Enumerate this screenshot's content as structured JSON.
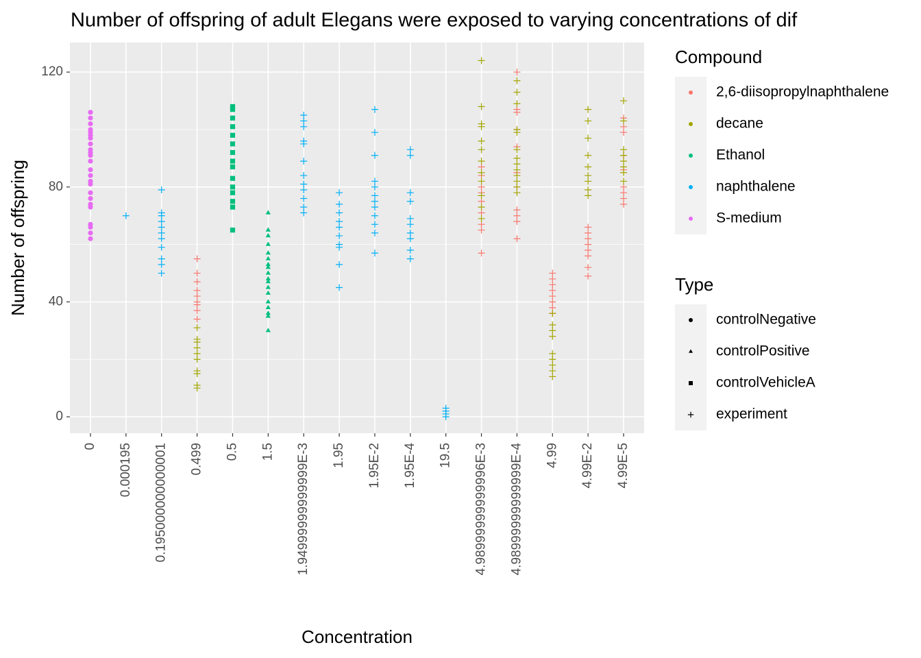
{
  "chart_data": {
    "type": "scatter",
    "title": "Number of offspring of adult Elegans were exposed to varying concentrations of dif",
    "x_label": "Concentration",
    "y_label": "Number of offspring",
    "categories": [
      "0",
      "0.000195",
      "0.195000000000001",
      "0.499",
      "0.5",
      "1.5",
      "1.94999999999999E-3",
      "1.95",
      "1.95E-2",
      "1.95E-4",
      "19.5",
      "4.98999999999996E-3",
      "4.98999999999999E-4",
      "4.99",
      "4.99E-2",
      "4.99E-5"
    ],
    "ylim": [
      -5.7,
      130.3
    ],
    "yticks": [
      0,
      40,
      80,
      120
    ],
    "grid": true,
    "compound_legend_title": "Compound",
    "type_legend_title": "Type",
    "compounds": [
      {
        "name": "2,6-diisopropylnaphthalene",
        "color": "#F8766D"
      },
      {
        "name": "decane",
        "color": "#A3A500"
      },
      {
        "name": "Ethanol",
        "color": "#00BF7D"
      },
      {
        "name": "naphthalene",
        "color": "#00B0F6"
      },
      {
        "name": "S-medium",
        "color": "#E76BF3"
      }
    ],
    "types": [
      {
        "name": "controlNegative",
        "shape": "circle"
      },
      {
        "name": "controlPositive",
        "shape": "triangle"
      },
      {
        "name": "controlVehicleA",
        "shape": "square"
      },
      {
        "name": "experiment",
        "shape": "plus"
      }
    ],
    "series": [
      {
        "compound": "S-medium",
        "type": "controlNegative",
        "x": [
          "0",
          "0",
          "0",
          "0",
          "0",
          "0",
          "0",
          "0",
          "0",
          "0",
          "0",
          "0",
          "0",
          "0",
          "0",
          "0",
          "0",
          "0",
          "0",
          "0",
          "0",
          "0",
          "0",
          "0"
        ],
        "values": [
          62,
          64,
          66,
          67,
          73,
          74,
          76,
          78,
          81,
          82,
          84,
          86,
          89,
          91,
          92,
          93,
          95,
          97,
          98,
          99,
          100,
          102,
          104,
          106
        ]
      },
      {
        "compound": "Ethanol",
        "type": "controlVehicleA",
        "x": [
          "0.5",
          "0.5",
          "0.5",
          "0.5",
          "0.5",
          "0.5",
          "0.5",
          "0.5",
          "0.5",
          "0.5",
          "0.5",
          "0.5",
          "0.5",
          "0.5",
          "0.5"
        ],
        "values": [
          65,
          73,
          75,
          78,
          80,
          83,
          87,
          89,
          92,
          95,
          98,
          101,
          104,
          107,
          108
        ]
      },
      {
        "compound": "Ethanol",
        "type": "controlPositive",
        "x": [
          "1.5",
          "1.5",
          "1.5",
          "1.5",
          "1.5",
          "1.5",
          "1.5",
          "1.5",
          "1.5",
          "1.5",
          "1.5",
          "1.5",
          "1.5",
          "1.5",
          "1.5",
          "1.5",
          "1.5",
          "1.5"
        ],
        "values": [
          30,
          35,
          36,
          38,
          40,
          43,
          45,
          47,
          48,
          50,
          52,
          53,
          55,
          57,
          60,
          63,
          65,
          71
        ]
      },
      {
        "compound": "naphthalene",
        "type": "experiment",
        "x": [
          "0.000195",
          "0.195000000000001",
          "0.195000000000001",
          "0.195000000000001",
          "0.195000000000001",
          "0.195000000000001",
          "0.195000000000001",
          "0.195000000000001",
          "0.195000000000001",
          "0.195000000000001",
          "0.195000000000001",
          "0.195000000000001",
          "1.94999999999999E-3",
          "1.94999999999999E-3",
          "1.94999999999999E-3",
          "1.94999999999999E-3",
          "1.94999999999999E-3",
          "1.94999999999999E-3",
          "1.94999999999999E-3",
          "1.94999999999999E-3",
          "1.94999999999999E-3",
          "1.94999999999999E-3",
          "1.94999999999999E-3",
          "1.94999999999999E-3",
          "1.95",
          "1.95",
          "1.95",
          "1.95",
          "1.95",
          "1.95",
          "1.95",
          "1.95",
          "1.95",
          "1.95",
          "1.95E-2",
          "1.95E-2",
          "1.95E-2",
          "1.95E-2",
          "1.95E-2",
          "1.95E-2",
          "1.95E-2",
          "1.95E-2",
          "1.95E-2",
          "1.95E-2",
          "1.95E-2",
          "1.95E-2",
          "1.95E-4",
          "1.95E-4",
          "1.95E-4",
          "1.95E-4",
          "1.95E-4",
          "1.95E-4",
          "1.95E-4",
          "1.95E-4",
          "1.95E-4",
          "1.95E-4",
          "19.5",
          "19.5",
          "19.5",
          "19.5"
        ],
        "values": [
          70,
          50,
          53,
          55,
          59,
          62,
          64,
          66,
          68,
          70,
          71,
          79,
          71,
          73,
          76,
          79,
          81,
          84,
          89,
          95,
          96,
          101,
          103,
          105,
          45,
          53,
          59,
          60,
          63,
          66,
          68,
          71,
          74,
          78,
          57,
          64,
          67,
          70,
          73,
          75,
          77,
          80,
          82,
          91,
          99,
          107,
          55,
          58,
          62,
          64,
          67,
          69,
          75,
          78,
          91,
          93,
          0,
          1,
          2,
          3
        ]
      },
      {
        "compound": "2,6-diisopropylnaphthalene",
        "type": "experiment",
        "x": [
          "0.499",
          "0.499",
          "0.499",
          "0.499",
          "0.499",
          "0.499",
          "0.499",
          "0.499",
          "0.499",
          "4.98999999999996E-3",
          "4.98999999999996E-3",
          "4.98999999999996E-3",
          "4.98999999999996E-3",
          "4.98999999999996E-3",
          "4.98999999999996E-3",
          "4.98999999999996E-3",
          "4.98999999999996E-3",
          "4.98999999999996E-3",
          "4.98999999999999E-4",
          "4.98999999999999E-4",
          "4.98999999999999E-4",
          "4.98999999999999E-4",
          "4.98999999999999E-4",
          "4.98999999999999E-4",
          "4.98999999999999E-4",
          "4.98999999999999E-4",
          "4.98999999999999E-4",
          "4.98999999999999E-4",
          "4.98999999999999E-4",
          "4.99",
          "4.99",
          "4.99",
          "4.99",
          "4.99",
          "4.99",
          "4.99",
          "4.99",
          "4.99E-2",
          "4.99E-2",
          "4.99E-2",
          "4.99E-2",
          "4.99E-2",
          "4.99E-2",
          "4.99E-2",
          "4.99E-2",
          "4.99E-5",
          "4.99E-5",
          "4.99E-5",
          "4.99E-5",
          "4.99E-5",
          "4.99E-5",
          "4.99E-5",
          "4.99E-5",
          "4.99E-5"
        ],
        "values": [
          34,
          37,
          39,
          40,
          42,
          44,
          47,
          50,
          55,
          57,
          65,
          67,
          71,
          75,
          78,
          80,
          84,
          87,
          62,
          68,
          70,
          72,
          80,
          85,
          94,
          100,
          106,
          107,
          120,
          36,
          38,
          40,
          42,
          44,
          46,
          48,
          50,
          49,
          52,
          56,
          58,
          60,
          62,
          64,
          66,
          74,
          76,
          78,
          80,
          86,
          91,
          99,
          101,
          104
        ]
      },
      {
        "compound": "decane",
        "type": "experiment",
        "x": [
          "0.499",
          "0.499",
          "0.499",
          "0.499",
          "0.499",
          "0.499",
          "0.499",
          "0.499",
          "0.499",
          "0.499",
          "4.98999999999996E-3",
          "4.98999999999996E-3",
          "4.98999999999996E-3",
          "4.98999999999996E-3",
          "4.98999999999996E-3",
          "4.98999999999996E-3",
          "4.98999999999996E-3",
          "4.98999999999996E-3",
          "4.98999999999996E-3",
          "4.98999999999996E-3",
          "4.98999999999996E-3",
          "4.98999999999996E-3",
          "4.98999999999999E-4",
          "4.98999999999999E-4",
          "4.98999999999999E-4",
          "4.98999999999999E-4",
          "4.98999999999999E-4",
          "4.98999999999999E-4",
          "4.98999999999999E-4",
          "4.98999999999999E-4",
          "4.98999999999999E-4",
          "4.98999999999999E-4",
          "4.98999999999999E-4",
          "4.98999999999999E-4",
          "4.98999999999999E-4",
          "4.99",
          "4.99",
          "4.99",
          "4.99",
          "4.99",
          "4.99",
          "4.99",
          "4.99",
          "4.99",
          "4.99E-2",
          "4.99E-2",
          "4.99E-2",
          "4.99E-2",
          "4.99E-2",
          "4.99E-2",
          "4.99E-2",
          "4.99E-2",
          "4.99E-2",
          "4.99E-5",
          "4.99E-5",
          "4.99E-5",
          "4.99E-5",
          "4.99E-5",
          "4.99E-5",
          "4.99E-5",
          "4.99E-5"
        ],
        "values": [
          10,
          11,
          15,
          16,
          20,
          22,
          24,
          26,
          27,
          31,
          69,
          73,
          77,
          82,
          85,
          89,
          93,
          96,
          101,
          102,
          108,
          124,
          78,
          80,
          82,
          84,
          86,
          88,
          90,
          93,
          99,
          100,
          109,
          113,
          117,
          14,
          16,
          18,
          20,
          22,
          28,
          30,
          32,
          36,
          77,
          79,
          82,
          84,
          87,
          91,
          97,
          103,
          107,
          82,
          85,
          87,
          89,
          91,
          93,
          103,
          110
        ]
      }
    ]
  }
}
